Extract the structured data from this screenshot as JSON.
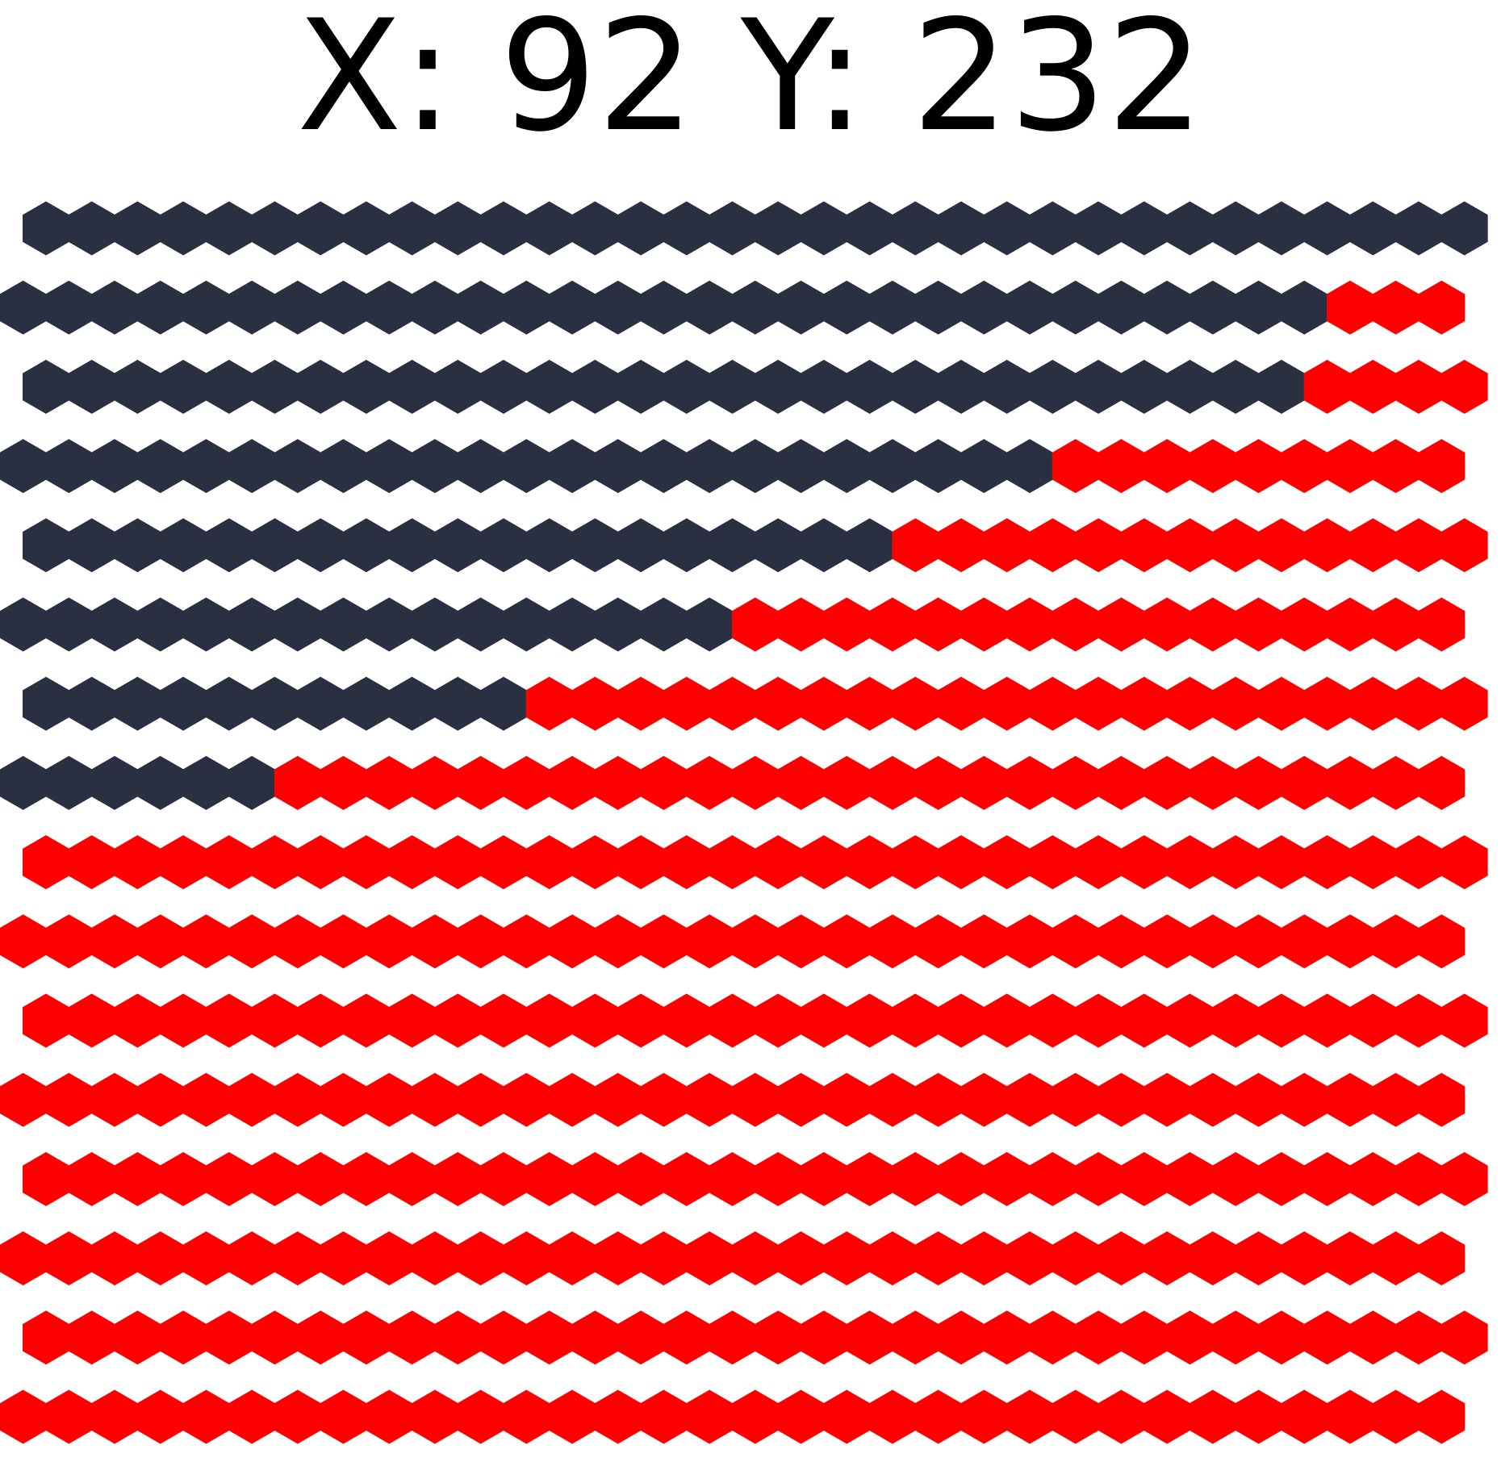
{
  "readout": {
    "x_label": "X:",
    "x_value": "92",
    "y_label": "Y:",
    "y_value": "232"
  },
  "colors": {
    "upper_region": "#2a3042",
    "lower_region": "#ff0000",
    "background": "#ffffff",
    "text": "#000000"
  },
  "board": {
    "columns": 32,
    "rows": 16,
    "boundary_row_per_column": [
      8,
      8,
      8,
      8,
      8,
      8,
      7,
      7,
      7,
      7,
      7,
      6,
      6,
      6,
      6,
      6,
      5,
      5,
      5,
      4,
      4,
      4,
      4,
      3,
      3,
      3,
      3,
      3,
      2,
      1,
      1,
      1
    ]
  }
}
